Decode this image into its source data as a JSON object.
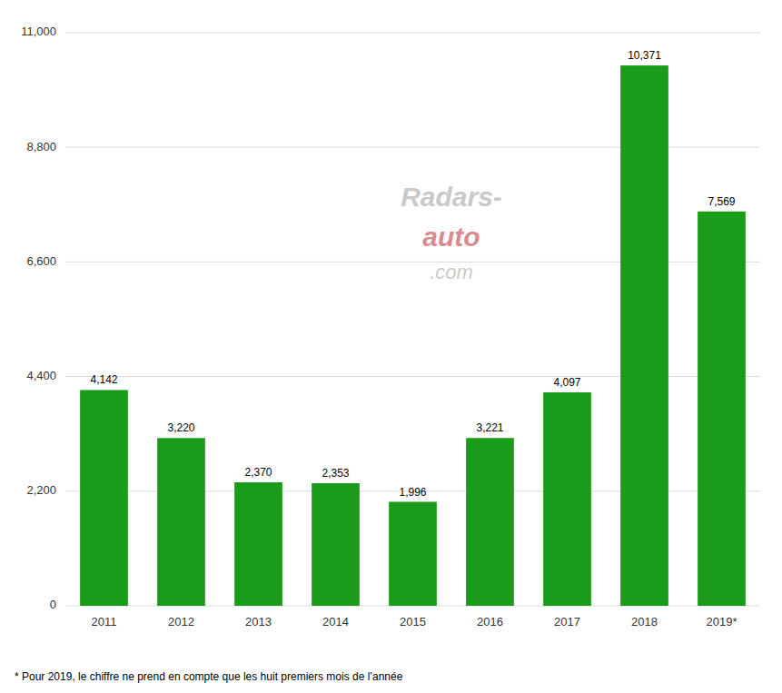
{
  "chart_data": {
    "type": "bar",
    "categories": [
      "2011",
      "2012",
      "2013",
      "2014",
      "2015",
      "2016",
      "2017",
      "2018",
      "2019*"
    ],
    "values": [
      4142,
      3220,
      2370,
      2353,
      1996,
      3221,
      4097,
      10371,
      7569
    ],
    "value_labels": [
      "4,142",
      "3,220",
      "2,370",
      "2,353",
      "1,996",
      "3,221",
      "4,097",
      "10,371",
      "7,569"
    ],
    "data_labels": true,
    "color": "#1a9c1a",
    "ylim": [
      0,
      11000
    ],
    "yticks": [
      0,
      {
        "value": 2200,
        "label": "2,200"
      },
      {
        "value": 4400,
        "label": "4,400"
      },
      {
        "value": 6600,
        "label": "6,600"
      },
      {
        "value": 8800,
        "label": "8,800"
      },
      {
        "value": 11000,
        "label": "11,000"
      }
    ],
    "grid": true,
    "footnote": "* Pour 2019, le chiffre ne prend en compte que les huit premiers mois de l’année",
    "watermark": [
      "Radars-",
      "auto",
      ".com"
    ]
  }
}
